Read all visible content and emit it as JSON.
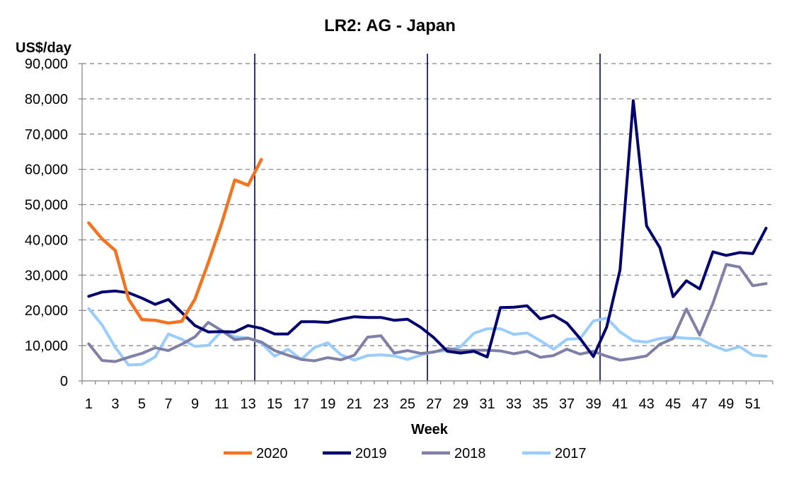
{
  "chart_data": {
    "type": "line",
    "title": "LR2: AG - Japan",
    "ylabel": "US$/day",
    "xlabel": "Week",
    "ylim": [
      0,
      90000
    ],
    "xlim": [
      1,
      52
    ],
    "y_ticks": [
      "0",
      "10,000",
      "20,000",
      "30,000",
      "40,000",
      "50,000",
      "60,000",
      "70,000",
      "80,000",
      "90,000"
    ],
    "y_tick_values": [
      0,
      10000,
      20000,
      30000,
      40000,
      50000,
      60000,
      70000,
      80000,
      90000
    ],
    "x_ticks": [
      "1",
      "3",
      "5",
      "7",
      "9",
      "11",
      "13",
      "15",
      "17",
      "19",
      "21",
      "23",
      "25",
      "27",
      "29",
      "31",
      "33",
      "35",
      "37",
      "39",
      "41",
      "43",
      "45",
      "47",
      "49",
      "51"
    ],
    "x_tick_values": [
      1,
      3,
      5,
      7,
      9,
      11,
      13,
      15,
      17,
      19,
      21,
      23,
      25,
      27,
      29,
      31,
      33,
      35,
      37,
      39,
      41,
      43,
      45,
      47,
      49,
      51
    ],
    "grid": "horizontal dashed",
    "legend_position": "bottom",
    "quarter_markers": [
      13.5,
      26.5,
      39.5
    ],
    "series": [
      {
        "name": "2020",
        "color": "#F4731F",
        "x": [
          1,
          2,
          3,
          4,
          5,
          6,
          7,
          8,
          9,
          10,
          11,
          12,
          13,
          14
        ],
        "values": [
          44800,
          40300,
          37000,
          23200,
          17400,
          17200,
          16400,
          16900,
          23200,
          33500,
          44600,
          57000,
          55500,
          62800
        ]
      },
      {
        "name": "2019",
        "color": "#00006E",
        "x": [
          1,
          2,
          3,
          4,
          5,
          6,
          7,
          8,
          9,
          10,
          11,
          12,
          13,
          14,
          15,
          16,
          17,
          18,
          19,
          20,
          21,
          22,
          23,
          24,
          25,
          26,
          27,
          28,
          29,
          30,
          31,
          32,
          33,
          34,
          35,
          36,
          37,
          38,
          39,
          40,
          41,
          42,
          43,
          44,
          45,
          46,
          47,
          48,
          49,
          50,
          51,
          52
        ],
        "values": [
          24000,
          25200,
          25500,
          25000,
          23500,
          21700,
          23100,
          19400,
          15700,
          13900,
          14000,
          13900,
          15700,
          14900,
          13300,
          13300,
          16800,
          16800,
          16600,
          17500,
          18200,
          18000,
          18000,
          17200,
          17500,
          15200,
          12200,
          8400,
          7900,
          8400,
          6800,
          20800,
          20900,
          21300,
          17600,
          18600,
          16400,
          12000,
          6900,
          15300,
          31500,
          79500,
          44000,
          37800,
          23900,
          28400,
          26100,
          36600,
          35600,
          36400,
          36100,
          43300
        ]
      },
      {
        "name": "2018",
        "color": "#7F7FA8",
        "x": [
          1,
          2,
          3,
          4,
          5,
          6,
          7,
          8,
          9,
          10,
          11,
          12,
          13,
          14,
          15,
          16,
          17,
          18,
          19,
          20,
          21,
          22,
          23,
          24,
          25,
          26,
          27,
          28,
          29,
          30,
          31,
          32,
          33,
          34,
          35,
          36,
          37,
          38,
          39,
          40,
          41,
          42,
          43,
          44,
          45,
          46,
          47,
          48,
          49,
          50,
          51,
          52
        ],
        "values": [
          10500,
          5800,
          5500,
          6700,
          7800,
          9400,
          8600,
          10400,
          12500,
          16600,
          14300,
          11700,
          12100,
          11000,
          8600,
          7300,
          6100,
          5700,
          6600,
          6000,
          7300,
          12400,
          12800,
          7900,
          8600,
          7800,
          8200,
          9200,
          8600,
          8700,
          8700,
          8500,
          7700,
          8400,
          6700,
          7200,
          9000,
          7600,
          8400,
          7000,
          5900,
          6400,
          7100,
          10400,
          12000,
          20400,
          13000,
          22000,
          33000,
          32300,
          27000,
          27600
        ]
      },
      {
        "name": "2017",
        "color": "#99CCFF",
        "x": [
          1,
          2,
          3,
          4,
          5,
          6,
          7,
          8,
          9,
          10,
          11,
          12,
          13,
          14,
          15,
          16,
          17,
          18,
          19,
          20,
          21,
          22,
          23,
          24,
          25,
          26,
          27,
          28,
          29,
          30,
          31,
          32,
          33,
          34,
          35,
          36,
          37,
          38,
          39,
          40,
          41,
          42,
          43,
          44,
          45,
          46,
          47,
          48,
          49,
          50,
          51,
          52
        ],
        "values": [
          20500,
          15900,
          9500,
          4500,
          4700,
          6800,
          13300,
          11800,
          9800,
          10100,
          14100,
          12500,
          12200,
          10700,
          7000,
          9000,
          6100,
          9500,
          10800,
          7400,
          5900,
          7200,
          7400,
          7100,
          6100,
          7300,
          8300,
          8600,
          9700,
          13500,
          14800,
          14800,
          13200,
          13600,
          11400,
          9000,
          11800,
          12000,
          17000,
          17800,
          13900,
          11400,
          11000,
          12000,
          12400,
          12100,
          12000,
          10000,
          8600,
          9700,
          7300,
          7000
        ]
      }
    ]
  }
}
